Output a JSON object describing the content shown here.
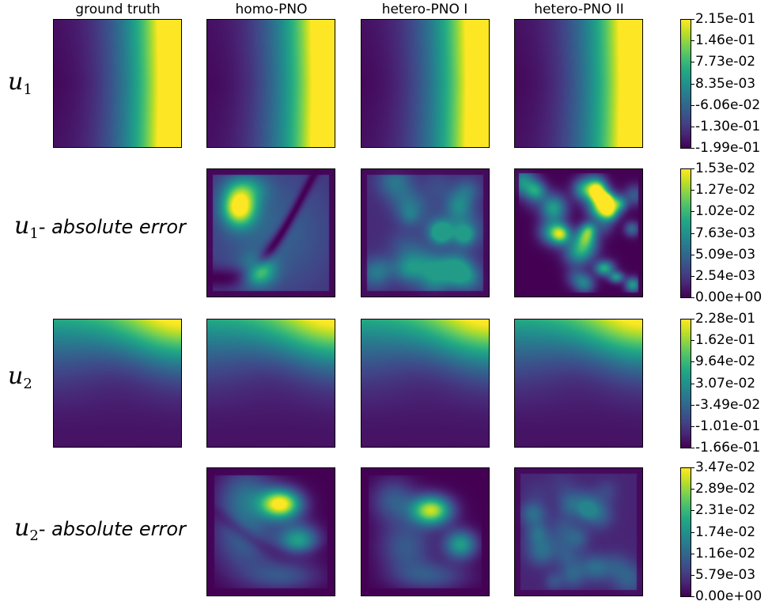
{
  "chart_data": {
    "type": "heatmap",
    "columns": [
      "ground truth",
      "homo-PNO",
      "hetero-PNO I",
      "hetero-PNO II"
    ],
    "colormap": "viridis",
    "rows": [
      {
        "label_symbol": "u",
        "label_sub": "1",
        "label_suffix": "",
        "panels": [
          "ground truth",
          "homo-PNO",
          "hetero-PNO I",
          "hetero-PNO II"
        ],
        "colorbar_ticks": [
          "2.15e-01",
          "1.46e-01",
          "7.73e-02",
          "8.35e-03",
          "-6.06e-02",
          "-1.30e-01",
          "-1.99e-01"
        ],
        "vmin": -0.199,
        "vmax": 0.215
      },
      {
        "label_symbol": "u",
        "label_sub": "1",
        "label_suffix": "- absolute error",
        "panels": [
          "homo-PNO",
          "hetero-PNO I",
          "hetero-PNO II"
        ],
        "colorbar_ticks": [
          "1.53e-02",
          "1.27e-02",
          "1.02e-02",
          "7.63e-03",
          "5.09e-03",
          "2.54e-03",
          "0.00e+00"
        ],
        "vmin": 0.0,
        "vmax": 0.0153
      },
      {
        "label_symbol": "u",
        "label_sub": "2",
        "label_suffix": "",
        "panels": [
          "ground truth",
          "homo-PNO",
          "hetero-PNO I",
          "hetero-PNO II"
        ],
        "colorbar_ticks": [
          "2.28e-01",
          "1.62e-01",
          "9.64e-02",
          "3.07e-02",
          "-3.49e-02",
          "-1.01e-01",
          "-1.66e-01"
        ],
        "vmin": -0.166,
        "vmax": 0.228
      },
      {
        "label_symbol": "u",
        "label_sub": "2",
        "label_suffix": "- absolute error",
        "panels": [
          "homo-PNO",
          "hetero-PNO I",
          "hetero-PNO II"
        ],
        "colorbar_ticks": [
          "3.47e-02",
          "2.89e-02",
          "2.31e-02",
          "1.74e-02",
          "1.16e-02",
          "5.79e-03",
          "0.00e+00"
        ],
        "vmin": 0.0,
        "vmax": 0.0347
      }
    ]
  }
}
